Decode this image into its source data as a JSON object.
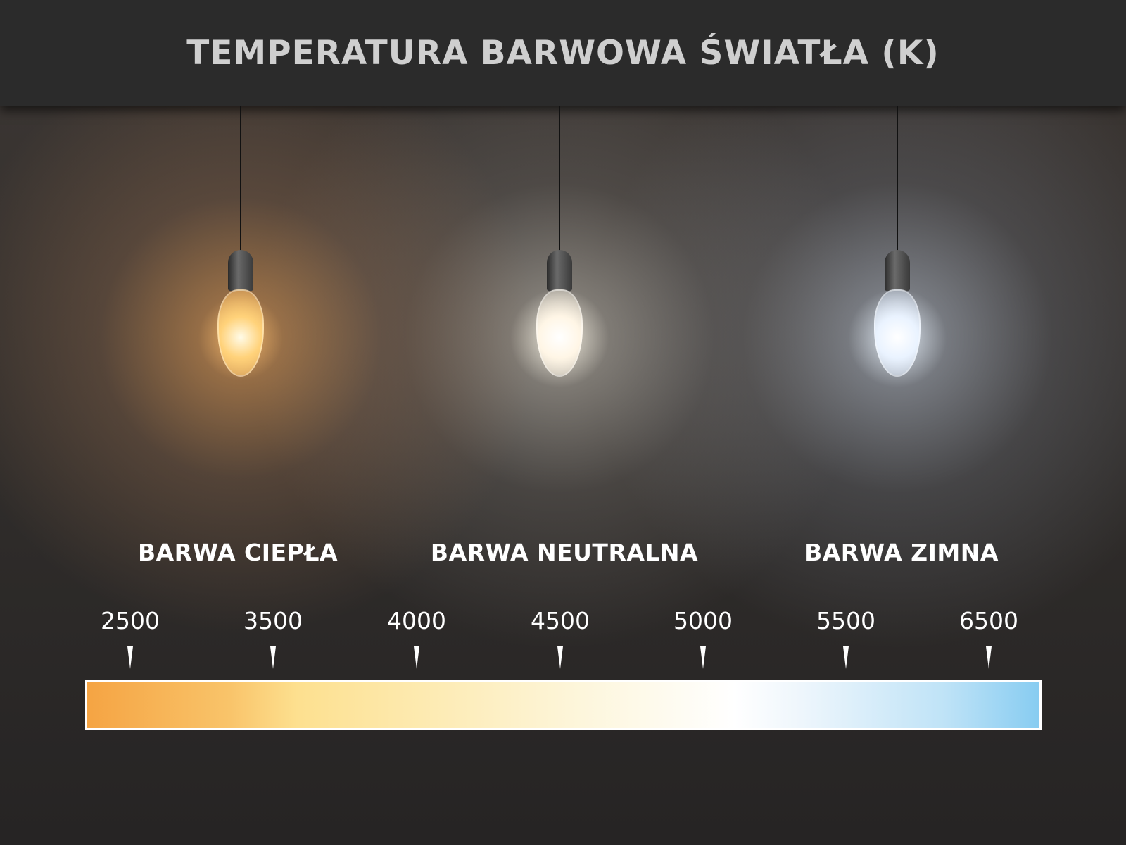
{
  "title": "TEMPERATURA BARWOWA ŚWIATŁA (K)",
  "bulbs": [
    {
      "name": "warm",
      "color": "#ffc47a"
    },
    {
      "name": "neutral",
      "color": "#fff6e6"
    },
    {
      "name": "cold",
      "color": "#eaf3ff"
    }
  ],
  "labels": [
    "BARWA CIEPŁA",
    "BARWA NEUTRALNA",
    "BARWA ZIMNA"
  ],
  "scale": [
    "2500",
    "3500",
    "4000",
    "4500",
    "5000",
    "5500",
    "6500"
  ],
  "gradient_colors": {
    "start": "#f5a443",
    "middle": "#ffffff",
    "end": "#87ccf1"
  }
}
